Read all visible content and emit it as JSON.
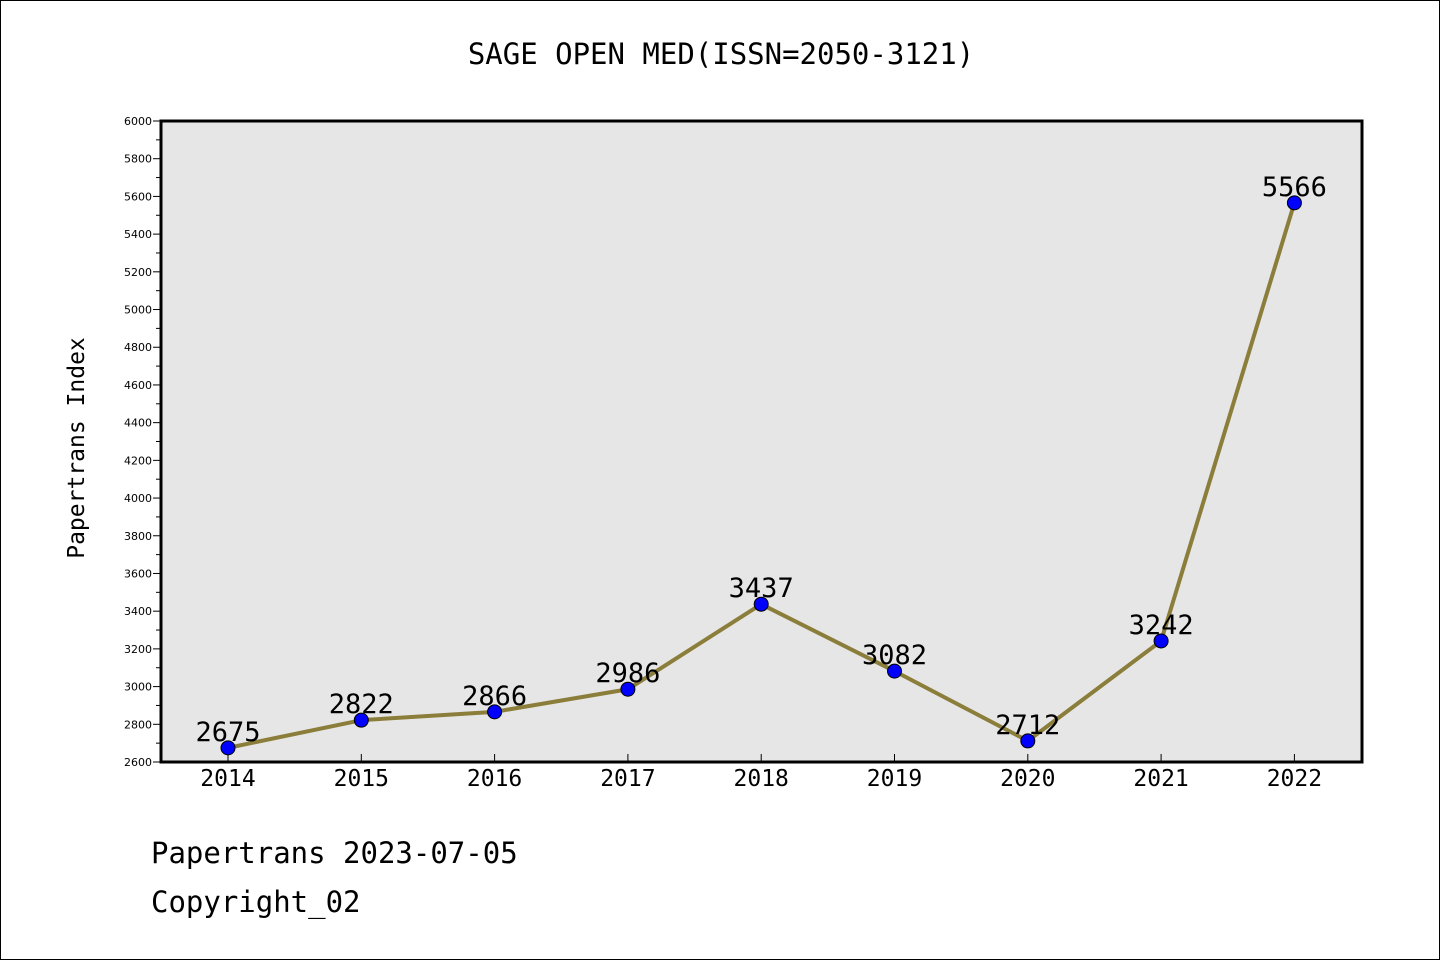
{
  "chart_data": {
    "type": "line",
    "title": "SAGE OPEN MED(ISSN=2050-3121)",
    "ylabel": "Papertrans Index",
    "xlabel": "",
    "categories": [
      "2014",
      "2015",
      "2016",
      "2017",
      "2018",
      "2019",
      "2020",
      "2021",
      "2022"
    ],
    "series": [
      {
        "values": [
          2675,
          2822,
          2866,
          2986,
          3437,
          3082,
          2712,
          3242,
          5566
        ],
        "data_labels": [
          "2675",
          "2822",
          "2866",
          "2986",
          "3437",
          "3082",
          "2712",
          "3242",
          "5566"
        ]
      }
    ],
    "ylim": [
      2600,
      6000
    ],
    "yticks": [
      2600,
      2800,
      3000,
      3200,
      3400,
      3600,
      3800,
      4000,
      4200,
      4400,
      4600,
      4800,
      5000,
      5200,
      5400,
      5600,
      5800,
      6000
    ],
    "ytick_labels": [
      "2600",
      "2800",
      "3000",
      "3200",
      "3400",
      "3600",
      "3800",
      "4000",
      "4200",
      "4400",
      "4600",
      "4800",
      "5000",
      "5200",
      "5400",
      "5600",
      "5800",
      "6000"
    ],
    "grid": false,
    "colors": {
      "line": "#8b7d3a",
      "marker": "#0000ff",
      "plot_background": "#e6e6e6"
    }
  },
  "footer": {
    "date_line": "Papertrans 2023-07-05",
    "copyright": "Copyright_02"
  }
}
